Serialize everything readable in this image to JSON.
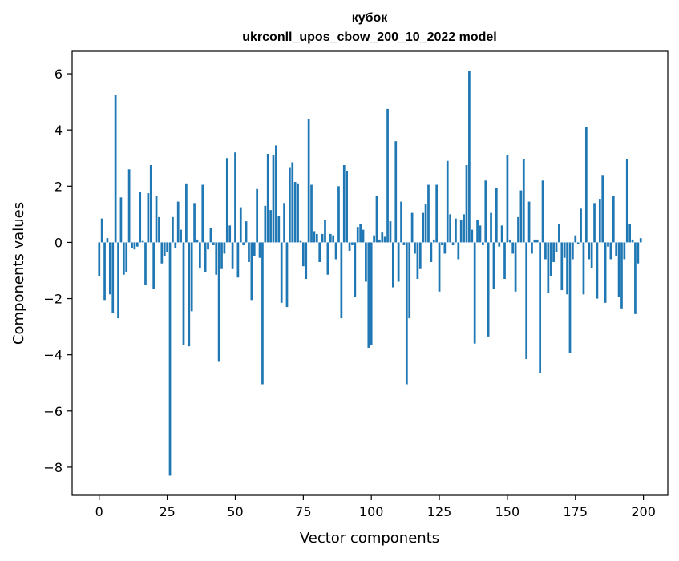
{
  "chart_data": {
    "type": "bar",
    "title": "кубок",
    "subtitle": "ukrconll_upos_cbow_200_10_2022 model",
    "xlabel": "Vector components",
    "ylabel": "Components values",
    "xlim": [
      -9.95,
      208.95
    ],
    "ylim": [
      -9.0,
      6.8
    ],
    "xticks": [
      0,
      25,
      50,
      75,
      100,
      125,
      150,
      175,
      200
    ],
    "xtick_labels": [
      "0",
      "25",
      "50",
      "75",
      "100",
      "125",
      "150",
      "175",
      "200"
    ],
    "yticks": [
      -8,
      -6,
      -4,
      -2,
      0,
      2,
      4,
      6
    ],
    "ytick_labels": [
      "−8",
      "−6",
      "−4",
      "−2",
      "0",
      "2",
      "4",
      "6"
    ],
    "grid": false,
    "bar_color": "#1f77b4",
    "x": [
      0,
      1,
      2,
      3,
      4,
      5,
      6,
      7,
      8,
      9,
      10,
      11,
      12,
      13,
      14,
      15,
      16,
      17,
      18,
      19,
      20,
      21,
      22,
      23,
      24,
      25,
      26,
      27,
      28,
      29,
      30,
      31,
      32,
      33,
      34,
      35,
      36,
      37,
      38,
      39,
      40,
      41,
      42,
      43,
      44,
      45,
      46,
      47,
      48,
      49,
      50,
      51,
      52,
      53,
      54,
      55,
      56,
      57,
      58,
      59,
      60,
      61,
      62,
      63,
      64,
      65,
      66,
      67,
      68,
      69,
      70,
      71,
      72,
      73,
      74,
      75,
      76,
      77,
      78,
      79,
      80,
      81,
      82,
      83,
      84,
      85,
      86,
      87,
      88,
      89,
      90,
      91,
      92,
      93,
      94,
      95,
      96,
      97,
      98,
      99,
      100,
      101,
      102,
      103,
      104,
      105,
      106,
      107,
      108,
      109,
      110,
      111,
      112,
      113,
      114,
      115,
      116,
      117,
      118,
      119,
      120,
      121,
      122,
      123,
      124,
      125,
      126,
      127,
      128,
      129,
      130,
      131,
      132,
      133,
      134,
      135,
      136,
      137,
      138,
      139,
      140,
      141,
      142,
      143,
      144,
      145,
      146,
      147,
      148,
      149,
      150,
      151,
      152,
      153,
      154,
      155,
      156,
      157,
      158,
      159,
      160,
      161,
      162,
      163,
      164,
      165,
      166,
      167,
      168,
      169,
      170,
      171,
      172,
      173,
      174,
      175,
      176,
      177,
      178,
      179,
      180,
      181,
      182,
      183,
      184,
      185,
      186,
      187,
      188,
      189,
      190,
      191,
      192,
      193,
      194,
      195,
      196,
      197,
      198,
      199
    ],
    "values": [
      -1.2,
      0.85,
      -2.05,
      0.15,
      -1.85,
      -2.5,
      5.25,
      -2.7,
      1.6,
      -1.15,
      -1.05,
      2.6,
      -0.2,
      -0.25,
      -0.15,
      1.8,
      0.05,
      -1.5,
      1.75,
      2.75,
      -1.65,
      1.65,
      0.9,
      -0.75,
      -0.5,
      -0.35,
      -8.3,
      0.9,
      -0.2,
      1.45,
      0.45,
      -3.65,
      2.1,
      -3.7,
      -2.45,
      1.4,
      0.1,
      -0.9,
      2.05,
      -1.05,
      -0.25,
      0.5,
      -0.1,
      -1.15,
      -4.25,
      -0.95,
      -0.4,
      3.0,
      0.6,
      -0.95,
      3.2,
      -1.25,
      1.25,
      -0.1,
      0.75,
      -0.7,
      -2.05,
      -0.5,
      1.9,
      -0.55,
      -5.05,
      1.3,
      3.15,
      1.15,
      3.1,
      3.45,
      0.95,
      -2.15,
      1.4,
      -2.3,
      2.65,
      2.85,
      2.15,
      2.1,
      0.05,
      -0.85,
      -1.3,
      4.4,
      2.05,
      0.4,
      0.3,
      -0.7,
      0.3,
      0.8,
      -1.15,
      0.3,
      0.25,
      -0.6,
      2.0,
      -2.7,
      2.75,
      2.55,
      -0.3,
      -0.1,
      -1.95,
      0.55,
      0.65,
      0.45,
      -1.4,
      -3.75,
      -3.65,
      0.25,
      1.65,
      0.1,
      0.35,
      0.2,
      4.75,
      0.75,
      -1.6,
      3.6,
      -1.4,
      1.45,
      -0.1,
      -5.05,
      -2.7,
      1.05,
      -0.4,
      -1.3,
      -0.95,
      1.05,
      1.35,
      2.05,
      -0.7,
      0.1,
      2.05,
      -1.75,
      -0.1,
      -0.4,
      2.9,
      1.0,
      -0.1,
      0.85,
      -0.6,
      0.8,
      1.0,
      2.75,
      6.1,
      0.45,
      -3.6,
      0.8,
      0.6,
      -0.1,
      2.2,
      -3.35,
      1.05,
      -1.65,
      1.95,
      -0.15,
      0.6,
      -1.3,
      3.1,
      0.1,
      -0.4,
      -1.75,
      0.9,
      1.85,
      2.95,
      -4.15,
      1.45,
      -0.4,
      0.1,
      0.1,
      -4.65,
      2.2,
      -0.6,
      -1.8,
      -1.2,
      -0.7,
      -0.35,
      0.65,
      -1.7,
      -0.55,
      -1.85,
      -3.95,
      -0.6,
      0.25,
      -0.05,
      1.2,
      -1.85,
      4.1,
      -0.6,
      -0.9,
      1.4,
      -2.0,
      1.55,
      2.4,
      -2.15,
      -0.15,
      -0.6,
      1.65,
      -0.5,
      -1.95,
      -2.35,
      -0.6,
      2.95,
      0.65,
      0.1,
      -2.55,
      -0.75,
      0.15
    ]
  }
}
